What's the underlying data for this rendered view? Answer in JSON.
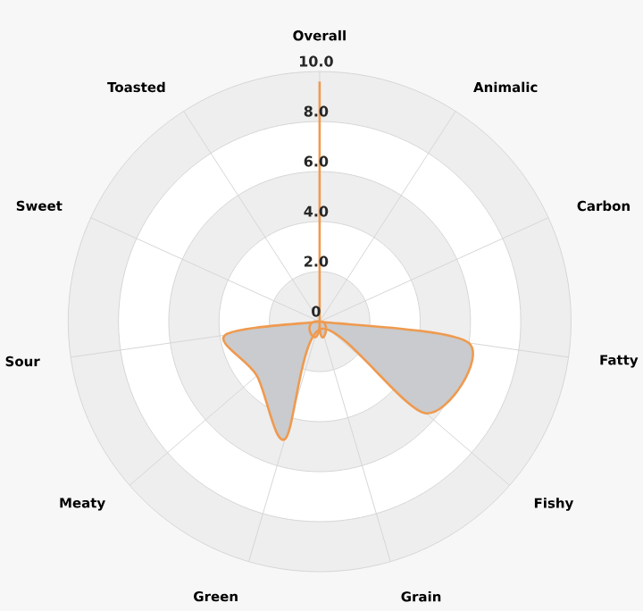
{
  "chart_data": {
    "type": "radar",
    "categories": [
      "Overall",
      "Animalic",
      "Carbon",
      "Fatty",
      "Fishy",
      "Grain",
      "Green",
      "Meaty",
      "Sour",
      "Sweet",
      "Toasted"
    ],
    "series": [
      {
        "color": "#ef9a4f",
        "values": [
          9.6,
          0,
          0,
          6.0,
          5.6,
          0.3,
          4.9,
          3.3,
          3.8,
          0,
          0
        ]
      }
    ],
    "ylim": [
      0,
      10
    ],
    "yticks": [
      0,
      {
        "value": 2,
        "label": "2.0"
      },
      {
        "value": 4,
        "label": "4.0"
      },
      {
        "value": 6,
        "label": "6.0"
      },
      {
        "value": 8,
        "label": "8.0"
      },
      {
        "value": 10,
        "label": "10.0"
      }
    ],
    "grid": true
  }
}
